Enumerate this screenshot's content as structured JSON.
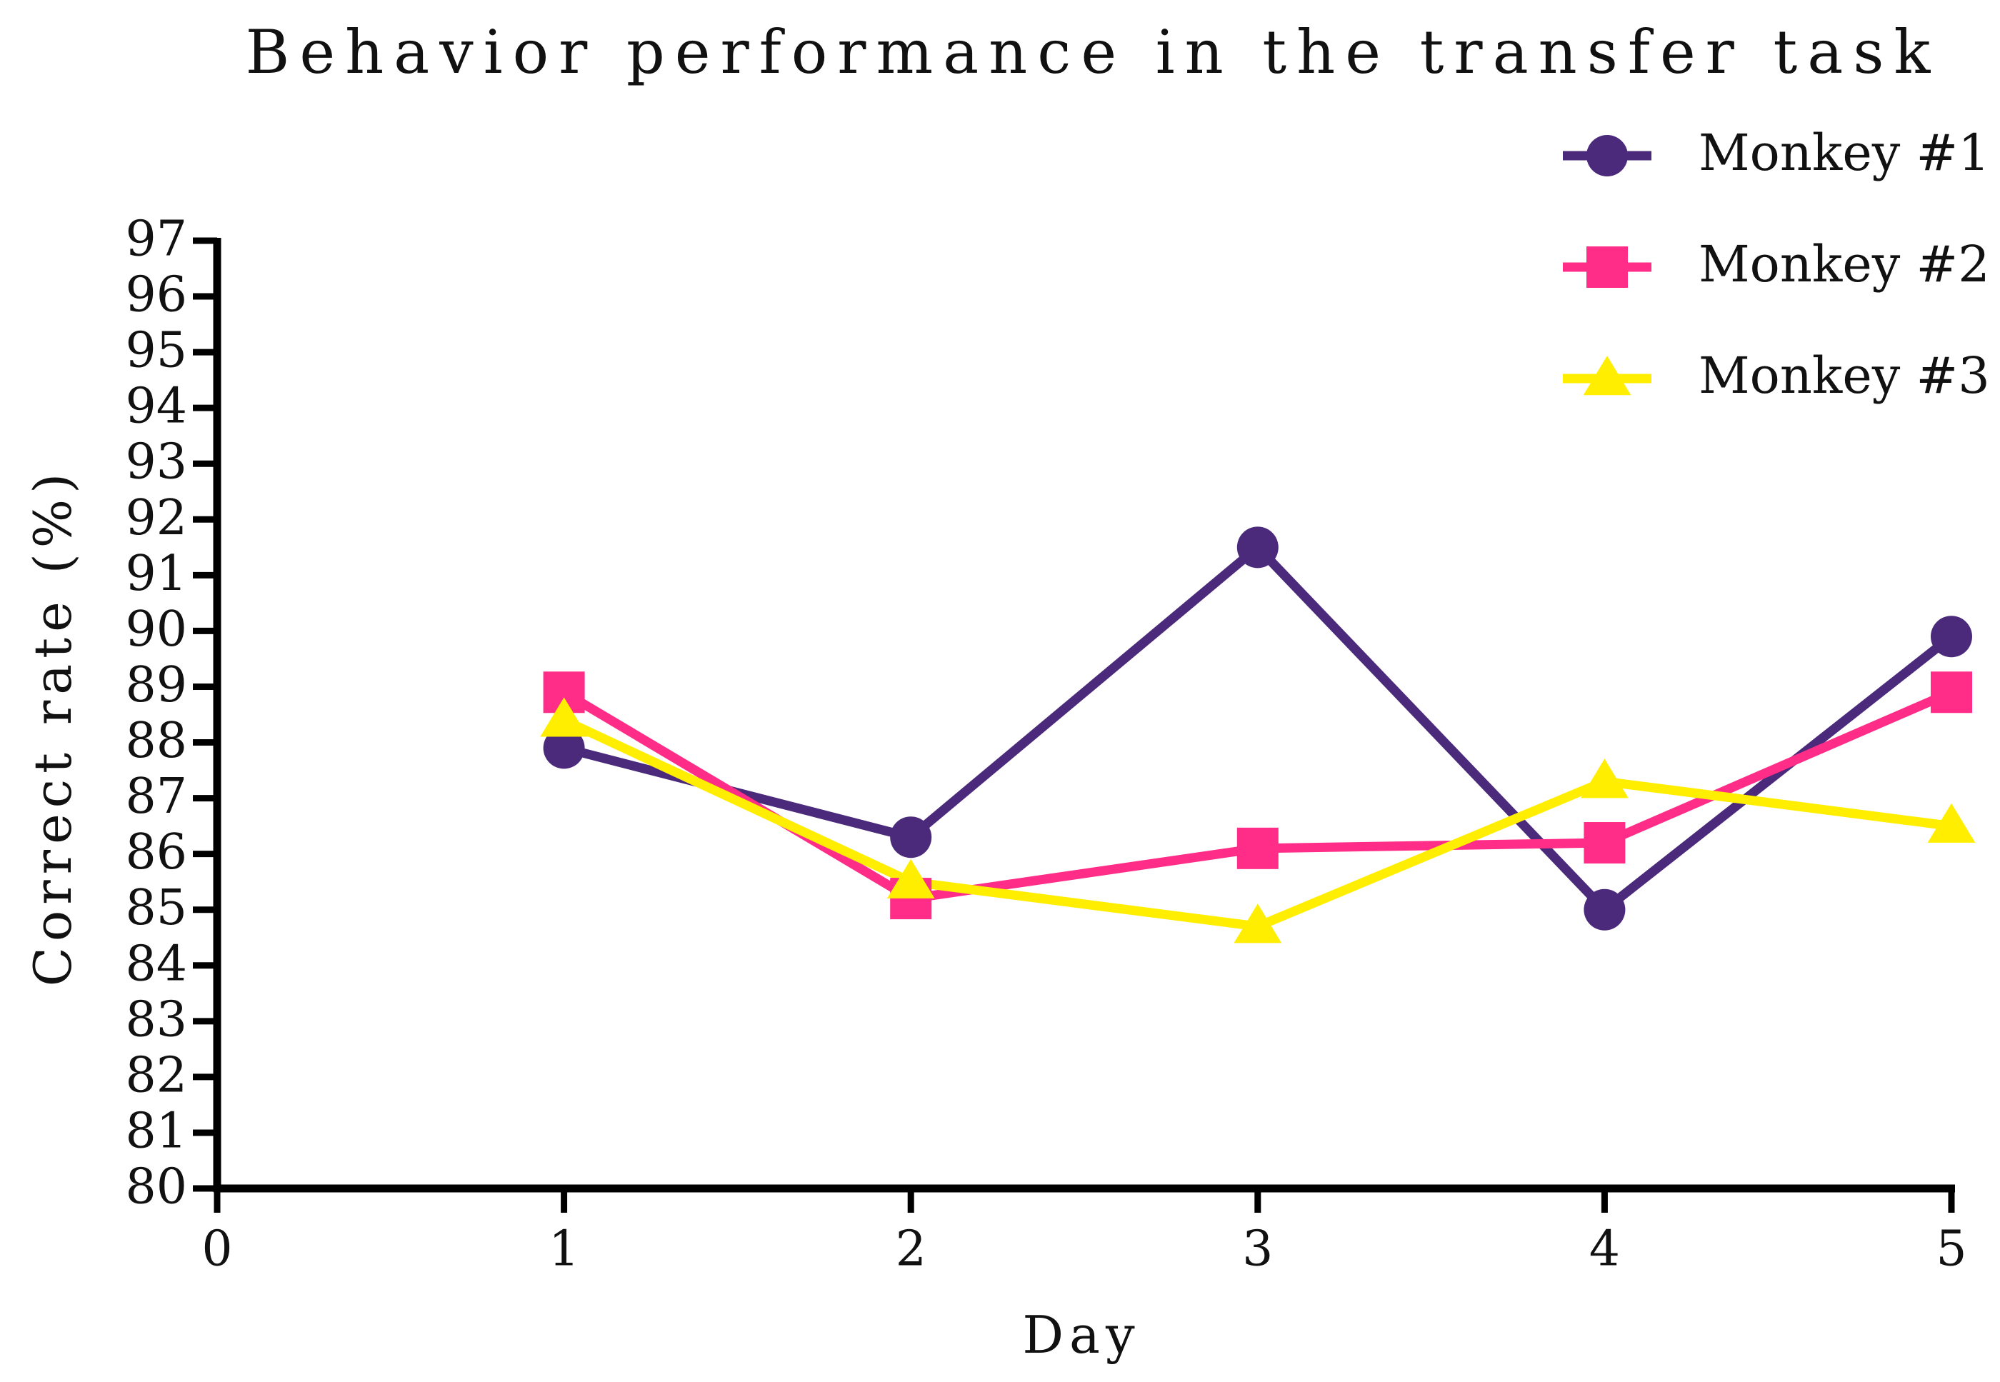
{
  "chart_data": {
    "type": "line",
    "title": "Behavior performance in the transfer task",
    "x_label": "Day",
    "y_label": "Correct rate (%)",
    "x": [
      1,
      2,
      3,
      4,
      5
    ],
    "series": [
      {
        "name": "Monkey #1",
        "color": "#4b2a7b",
        "marker": "circle",
        "values": [
          87.9,
          86.3,
          91.5,
          85.0,
          89.9
        ]
      },
      {
        "name": "Monkey #2",
        "color": "#ff2d87",
        "marker": "square",
        "values": [
          88.9,
          85.2,
          86.1,
          86.2,
          88.9
        ]
      },
      {
        "name": "Monkey #3",
        "color": "#ffee00",
        "marker": "triangle",
        "values": [
          88.4,
          85.5,
          84.7,
          87.3,
          86.5
        ]
      }
    ],
    "xlim": [
      0,
      5
    ],
    "xticks": [
      0,
      1,
      2,
      3,
      4,
      5
    ],
    "ylim": [
      80,
      97
    ],
    "yticks": [
      80,
      81,
      82,
      83,
      84,
      85,
      86,
      87,
      88,
      89,
      90,
      91,
      92,
      93,
      94,
      95,
      96,
      97
    ],
    "legend": "top-right"
  }
}
